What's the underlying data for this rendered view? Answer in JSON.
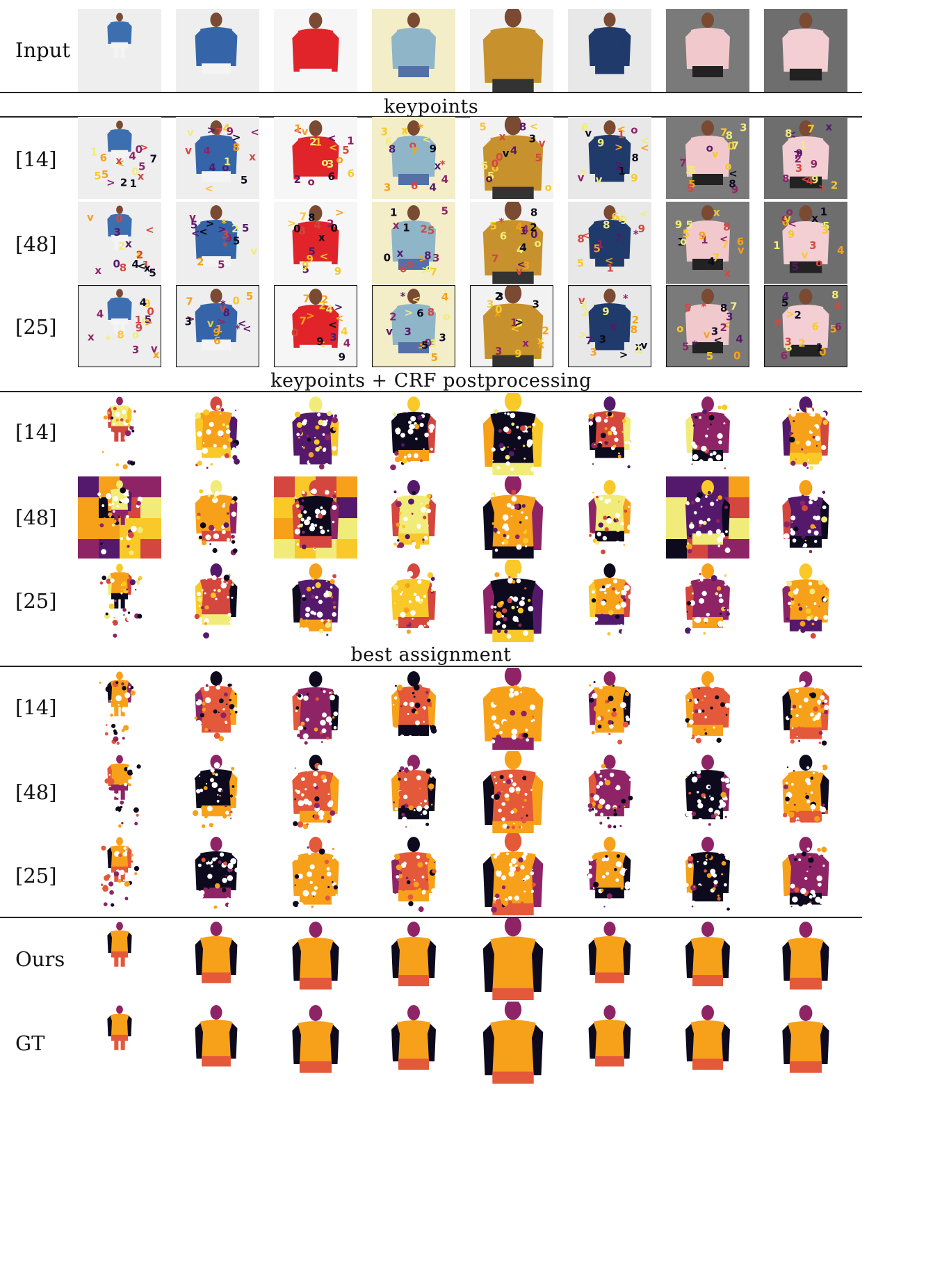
{
  "row_labels": {
    "input": "Input",
    "kp_14": "[14]",
    "kp_48": "[48]",
    "kp_25": "[25]",
    "crf_14": "[14]",
    "crf_48": "[48]",
    "crf_25": "[25]",
    "ba_14": "[14]",
    "ba_48": "[48]",
    "ba_25": "[25]",
    "ours": "Ours",
    "gt": "GT"
  },
  "section_titles": {
    "keypoints": "keypoints",
    "crf": "keypoints + CRF postprocessing",
    "best": "best assignment"
  },
  "colors": {
    "black": "#0d0a1e",
    "purple": "#55196c",
    "magenta": "#8e2466",
    "red": "#d4473f",
    "orange": "#f7a11a",
    "yellow": "#f9c929",
    "pale": "#f1ec7a",
    "coral": "#e4593a"
  },
  "input_images": [
    {
      "shirt": "#3d6fb0",
      "bg": "#eeeeee",
      "pants": "#f4f4f4"
    },
    {
      "shirt": "#3565a8",
      "bg": "#eeeeee",
      "pants": "#f4f4f4"
    },
    {
      "shirt": "#e0242a",
      "bg": "#f6f6f6",
      "pants": "#f6f6f6"
    },
    {
      "shirt": "#8fb6c8",
      "bg": "#f3edc8",
      "pants": "#5570a8"
    },
    {
      "shirt": "#c7912e",
      "bg": "#f2f2f2",
      "pants": "#333333"
    },
    {
      "shirt": "#1f3a6b",
      "bg": "#e8e8e8",
      "pants": "#1f3a6b"
    },
    {
      "shirt": "#f1c9cd",
      "bg": "#7a7a7a",
      "pants": "#222222"
    },
    {
      "shirt": "#f3cfd3",
      "bg": "#6e6e6e",
      "pants": "#222222"
    }
  ]
}
